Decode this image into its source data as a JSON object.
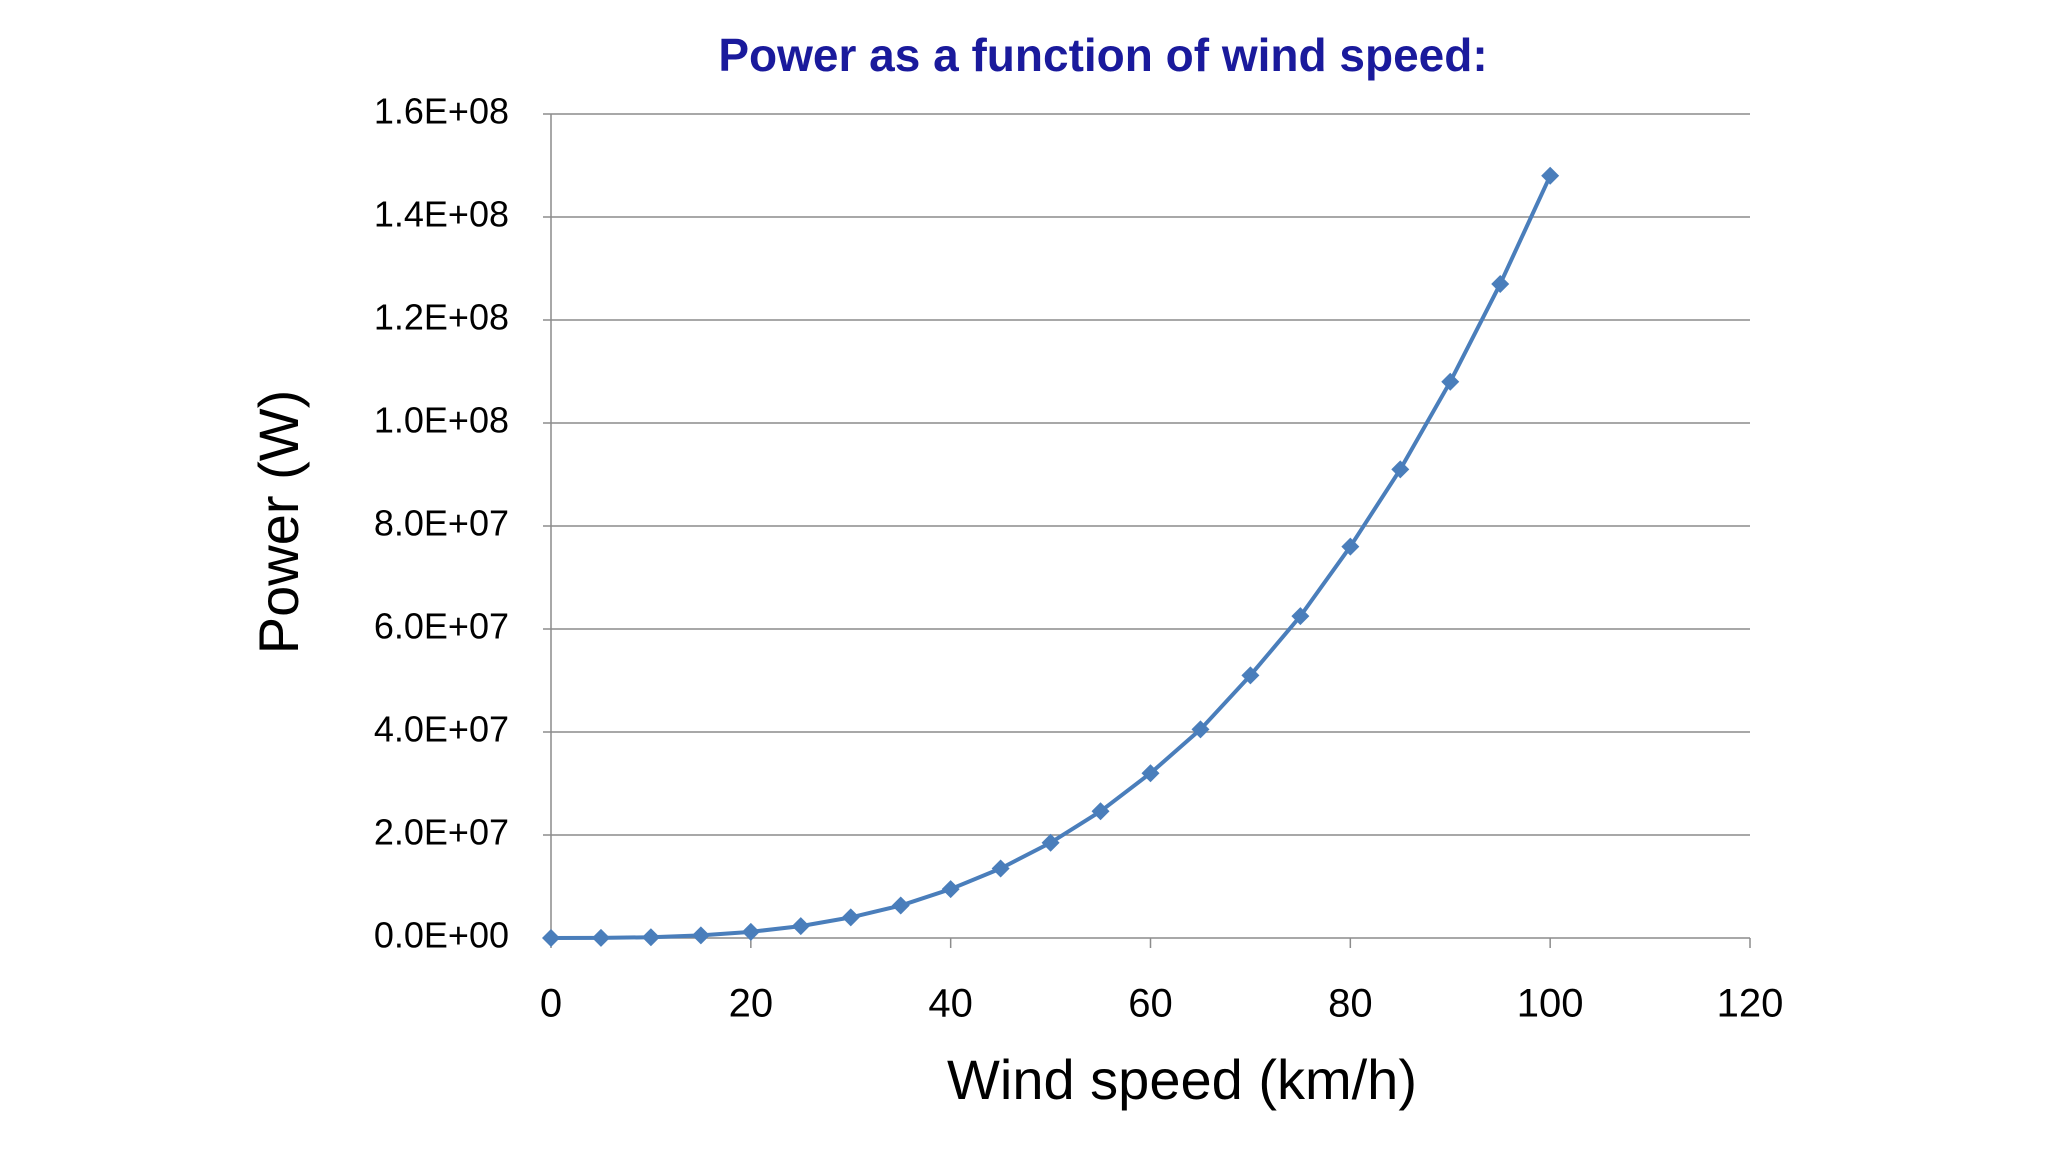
{
  "chart_data": {
    "type": "line",
    "title": "Power as a function of wind speed:",
    "x_label": "Wind speed (km/h)",
    "y_label": "Power (W)",
    "x": [
      0,
      5,
      10,
      15,
      20,
      25,
      30,
      35,
      40,
      45,
      50,
      55,
      60,
      65,
      70,
      75,
      80,
      85,
      90,
      95,
      100
    ],
    "series": [
      {
        "name": "Power",
        "color": "#4a7ebb",
        "values": [
          0,
          20000,
          150000,
          500000,
          1200000,
          2300000,
          4000000,
          6300000,
          9500000,
          13500000,
          18500000,
          24600000,
          32000000,
          40500000,
          51000000,
          62500000,
          76000000,
          91000000,
          108000000,
          127000000,
          148000000
        ]
      }
    ],
    "xlim": [
      0,
      120
    ],
    "xticks": [
      0,
      20,
      40,
      60,
      80,
      100,
      120
    ],
    "ylim": [
      0,
      160000000
    ],
    "yticks": [
      {
        "value": 0,
        "label": "0.0E+00"
      },
      {
        "value": 20000000,
        "label": "2.0E+07"
      },
      {
        "value": 40000000,
        "label": "4.0E+07"
      },
      {
        "value": 60000000,
        "label": "6.0E+07"
      },
      {
        "value": 80000000,
        "label": "8.0E+07"
      },
      {
        "value": 100000000,
        "label": "1.0E+08"
      },
      {
        "value": 120000000,
        "label": "1.2E+08"
      },
      {
        "value": 140000000,
        "label": "1.4E+08"
      },
      {
        "value": 160000000,
        "label": "1.6E+08"
      }
    ],
    "grid": true
  }
}
